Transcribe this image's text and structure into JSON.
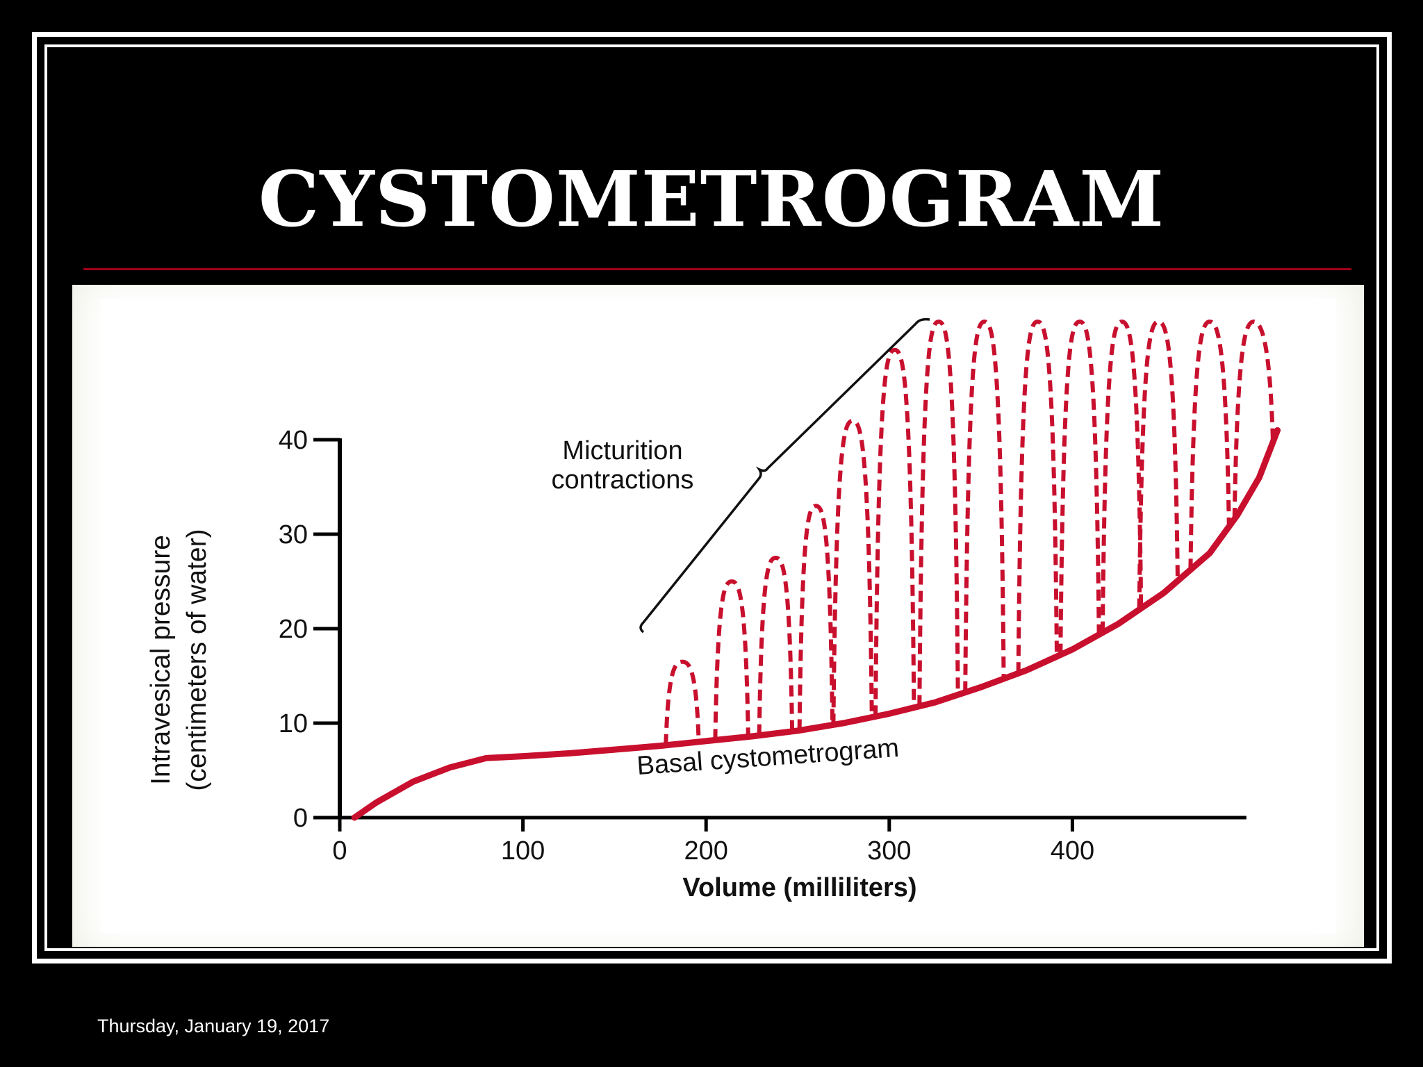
{
  "slide": {
    "title": "CYSTOMETROGRAM",
    "footer_date": "Thursday, January 19, 2017"
  },
  "colors": {
    "background": "#000000",
    "frame": "#ffffff",
    "rule": "#a00018",
    "curve": "#c8102e",
    "axis": "#000000"
  },
  "chart_data": {
    "type": "line",
    "xlabel": "Volume (milliliters)",
    "ylabel_lines": [
      "Intravesical pressure",
      "(centimeters of water)"
    ],
    "xlim": [
      0,
      500
    ],
    "ylim": [
      0,
      40
    ],
    "x_ticks": [
      0,
      100,
      200,
      300,
      400
    ],
    "y_ticks": [
      0,
      10,
      20,
      30,
      40
    ],
    "series": [
      {
        "name": "Basal cystometrogram",
        "style": "solid",
        "points": [
          [
            8,
            0
          ],
          [
            20,
            1.6
          ],
          [
            40,
            3.8
          ],
          [
            60,
            5.3
          ],
          [
            80,
            6.3
          ],
          [
            100,
            6.5
          ],
          [
            125,
            6.8
          ],
          [
            150,
            7.2
          ],
          [
            175,
            7.6
          ],
          [
            200,
            8.1
          ],
          [
            225,
            8.6
          ],
          [
            250,
            9.2
          ],
          [
            275,
            10.0
          ],
          [
            300,
            11.0
          ],
          [
            325,
            12.2
          ],
          [
            350,
            13.8
          ],
          [
            375,
            15.6
          ],
          [
            400,
            17.8
          ],
          [
            425,
            20.5
          ],
          [
            450,
            23.8
          ],
          [
            475,
            28.0
          ],
          [
            490,
            32.0
          ],
          [
            502,
            36.0
          ],
          [
            512,
            41.0
          ]
        ]
      },
      {
        "name": "Micturition contractions",
        "style": "dashed",
        "peaks": [
          {
            "x": 187,
            "y": 16.5
          },
          {
            "x": 214,
            "y": 25.0
          },
          {
            "x": 238,
            "y": 27.5
          },
          {
            "x": 260,
            "y": 33.0
          },
          {
            "x": 280,
            "y": 42.0
          },
          {
            "x": 303,
            "y": 49.5
          },
          {
            "x": 327,
            "y": 52.5
          },
          {
            "x": 352,
            "y": 52.5
          },
          {
            "x": 381,
            "y": 52.5
          },
          {
            "x": 404,
            "y": 52.5
          },
          {
            "x": 427,
            "y": 52.5
          },
          {
            "x": 447,
            "y": 52.5
          },
          {
            "x": 475,
            "y": 52.5
          },
          {
            "x": 499,
            "y": 52.5
          }
        ]
      }
    ],
    "annotations": {
      "contractions_label": [
        "Micturition",
        "contractions"
      ],
      "basal_label": "Basal cystometrogram"
    }
  }
}
